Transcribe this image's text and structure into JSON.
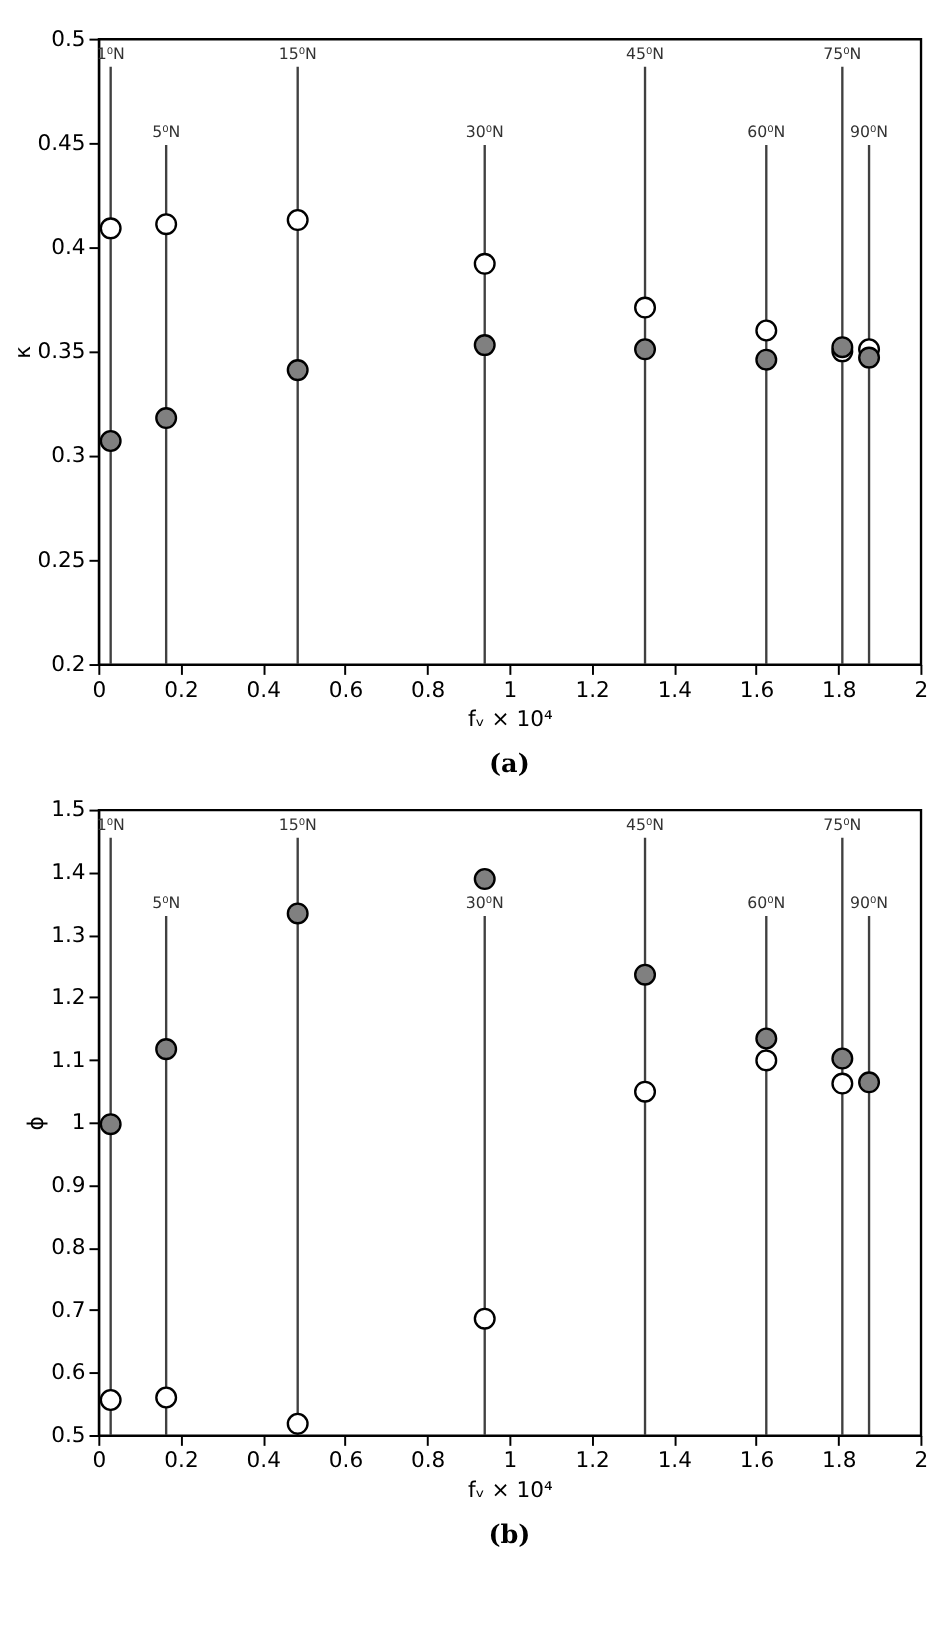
{
  "chart_data": [
    {
      "type": "scatter",
      "xlabel": "fᵥ × 10⁴",
      "ylabel": "κ",
      "annotations": [
        "(a)"
      ],
      "marker": "circle",
      "grid": false,
      "xlim": [
        0,
        2
      ],
      "xticks": [
        0,
        0.2,
        0.4,
        0.6,
        0.8,
        1,
        1.2,
        1.4,
        1.6,
        1.8,
        2
      ],
      "ylim": [
        0.2,
        0.5
      ],
      "yticks": [
        0.2,
        0.25,
        0.3,
        0.35,
        0.4,
        0.45,
        0.5
      ],
      "x": [
        0.03,
        0.165,
        0.485,
        0.94,
        1.33,
        1.625,
        1.81,
        1.875
      ],
      "series": [
        {
          "color": "#ffffff",
          "values": [
            0.409,
            0.411,
            0.413,
            0.392,
            0.371,
            0.36,
            0.35,
            0.351
          ]
        },
        {
          "color": "#808080",
          "values": [
            0.307,
            0.318,
            0.341,
            0.353,
            0.351,
            0.346,
            0.352,
            0.347
          ]
        }
      ],
      "ref_lines": [
        {
          "axis": "x",
          "value": 0.03,
          "label": "1⁰N"
        },
        {
          "axis": "x",
          "value": 0.165,
          "label": "5⁰N"
        },
        {
          "axis": "x",
          "value": 0.485,
          "label": "15⁰N"
        },
        {
          "axis": "x",
          "value": 0.94,
          "label": "30⁰N"
        },
        {
          "axis": "x",
          "value": 1.33,
          "label": "45⁰N"
        },
        {
          "axis": "x",
          "value": 1.625,
          "label": "60⁰N"
        },
        {
          "axis": "x",
          "value": 1.81,
          "label": "75⁰N"
        },
        {
          "axis": "x",
          "value": 1.875,
          "label": "90⁰N"
        }
      ]
    },
    {
      "type": "scatter",
      "xlabel": "fᵥ × 10⁴",
      "ylabel": "ϕ",
      "annotations": [
        "(b)"
      ],
      "marker": "circle",
      "grid": false,
      "xlim": [
        0,
        2
      ],
      "xticks": [
        0,
        0.2,
        0.4,
        0.6,
        0.8,
        1,
        1.2,
        1.4,
        1.6,
        1.8,
        2
      ],
      "ylim": [
        0.5,
        1.5
      ],
      "yticks": [
        0.5,
        0.6,
        0.7,
        0.8,
        0.9,
        1,
        1.1,
        1.2,
        1.3,
        1.4,
        1.5
      ],
      "x": [
        0.03,
        0.165,
        0.485,
        0.94,
        1.33,
        1.625,
        1.81,
        1.875
      ],
      "series": [
        {
          "color": "#ffffff",
          "values": [
            0.556,
            0.56,
            0.518,
            0.686,
            1.049,
            1.099,
            1.062,
            null
          ]
        },
        {
          "color": "#808080",
          "values": [
            0.997,
            1.117,
            1.334,
            1.389,
            1.236,
            1.134,
            1.102,
            1.064
          ]
        }
      ],
      "ref_lines": [
        {
          "axis": "x",
          "value": 0.03,
          "label": "1⁰N"
        },
        {
          "axis": "x",
          "value": 0.165,
          "label": "5⁰N"
        },
        {
          "axis": "x",
          "value": 0.485,
          "label": "15⁰N"
        },
        {
          "axis": "x",
          "value": 0.94,
          "label": "30⁰N"
        },
        {
          "axis": "x",
          "value": 1.33,
          "label": "45⁰N"
        },
        {
          "axis": "x",
          "value": 1.625,
          "label": "60⁰N"
        },
        {
          "axis": "x",
          "value": 1.81,
          "label": "75⁰N"
        },
        {
          "axis": "x",
          "value": 1.875,
          "label": "90⁰N"
        }
      ]
    }
  ]
}
